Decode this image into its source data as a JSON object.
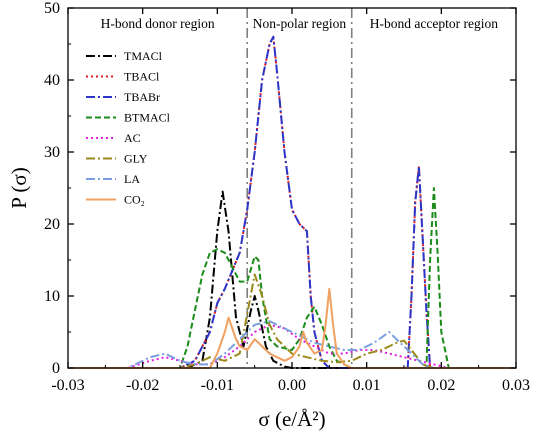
{
  "chart_data": {
    "type": "line",
    "xlabel": "σ (e/Å²)",
    "ylabel": "P (σ)",
    "xlim": [
      -0.03,
      0.03
    ],
    "ylim": [
      0,
      50
    ],
    "xticks": [
      "-0.03",
      "-0.02",
      "-0.01",
      "0.00",
      "0.01",
      "0.02",
      "0.03"
    ],
    "yticks": [
      "0",
      "10",
      "20",
      "30",
      "40",
      "50"
    ],
    "grid": false,
    "legend_position": "top-left",
    "region_dividers": [
      -0.006,
      0.008
    ],
    "regions": [
      {
        "label": "H-bond donor region",
        "x": -0.018
      },
      {
        "label": "Non-polar region",
        "x": 0.001
      },
      {
        "label": "H-bond acceptor region",
        "x": 0.019
      }
    ],
    "series": [
      {
        "name": "TMACl",
        "color": "#000000",
        "dash": "dashdot",
        "points": [
          [
            -0.03,
            0
          ],
          [
            -0.014,
            0
          ],
          [
            -0.012,
            1
          ],
          [
            -0.011,
            7
          ],
          [
            -0.01,
            19
          ],
          [
            -0.0093,
            24.5
          ],
          [
            -0.0085,
            19
          ],
          [
            -0.0075,
            7
          ],
          [
            -0.0065,
            3
          ],
          [
            -0.0055,
            8
          ],
          [
            -0.005,
            10
          ],
          [
            -0.0045,
            8
          ],
          [
            -0.0035,
            3
          ],
          [
            -0.0025,
            1
          ],
          [
            -0.001,
            0.2
          ],
          [
            0.0,
            0
          ],
          [
            0.03,
            0
          ]
        ]
      },
      {
        "name": "TBACl",
        "color": "#e41a1c",
        "dash": "dot",
        "points": [
          [
            -0.03,
            0
          ],
          [
            -0.015,
            0
          ],
          [
            -0.013,
            1
          ],
          [
            -0.011,
            5
          ],
          [
            -0.01,
            9
          ],
          [
            -0.009,
            11
          ],
          [
            -0.007,
            16
          ],
          [
            -0.006,
            22
          ],
          [
            -0.005,
            30
          ],
          [
            -0.004,
            40
          ],
          [
            -0.003,
            45
          ],
          [
            -0.0025,
            46
          ],
          [
            -0.002,
            41
          ],
          [
            -0.001,
            30
          ],
          [
            0.0,
            22
          ],
          [
            0.001,
            20
          ],
          [
            0.002,
            19
          ],
          [
            0.0025,
            10
          ],
          [
            0.003,
            5
          ],
          [
            0.004,
            1
          ],
          [
            0.005,
            0
          ],
          [
            0.0155,
            0
          ],
          [
            0.016,
            10
          ],
          [
            0.0165,
            23
          ],
          [
            0.017,
            28
          ],
          [
            0.0175,
            18
          ],
          [
            0.018,
            8
          ],
          [
            0.0185,
            0
          ],
          [
            0.03,
            0
          ]
        ]
      },
      {
        "name": "TBABr",
        "color": "#2b35c8",
        "dash": "dashdot",
        "points": [
          [
            -0.03,
            0
          ],
          [
            -0.015,
            0
          ],
          [
            -0.013,
            1
          ],
          [
            -0.011,
            5
          ],
          [
            -0.01,
            9
          ],
          [
            -0.009,
            11
          ],
          [
            -0.007,
            16
          ],
          [
            -0.006,
            22
          ],
          [
            -0.005,
            30
          ],
          [
            -0.004,
            40
          ],
          [
            -0.003,
            45
          ],
          [
            -0.0025,
            46
          ],
          [
            -0.002,
            41
          ],
          [
            -0.001,
            30
          ],
          [
            0.0,
            22
          ],
          [
            0.001,
            20
          ],
          [
            0.002,
            19
          ],
          [
            0.0025,
            10
          ],
          [
            0.003,
            5
          ],
          [
            0.004,
            1
          ],
          [
            0.005,
            0
          ],
          [
            0.0155,
            0
          ],
          [
            0.016,
            10
          ],
          [
            0.0165,
            23
          ],
          [
            0.017,
            28
          ],
          [
            0.0175,
            18
          ],
          [
            0.018,
            8
          ],
          [
            0.0185,
            0
          ],
          [
            0.03,
            0
          ]
        ]
      },
      {
        "name": "BTMACl",
        "color": "#1a8c1a",
        "dash": "dash",
        "points": [
          [
            -0.03,
            0
          ],
          [
            -0.015,
            0
          ],
          [
            -0.014,
            3
          ],
          [
            -0.013,
            8
          ],
          [
            -0.012,
            13
          ],
          [
            -0.011,
            16
          ],
          [
            -0.01,
            16.5
          ],
          [
            -0.009,
            16
          ],
          [
            -0.008,
            14
          ],
          [
            -0.007,
            12
          ],
          [
            -0.006,
            12
          ],
          [
            -0.005,
            15.5
          ],
          [
            -0.0045,
            15
          ],
          [
            -0.004,
            10
          ],
          [
            -0.003,
            4
          ],
          [
            -0.002,
            3
          ],
          [
            0.0,
            2.5
          ],
          [
            0.001,
            4
          ],
          [
            0.002,
            7
          ],
          [
            0.003,
            8.5
          ],
          [
            0.004,
            6
          ],
          [
            0.005,
            3
          ],
          [
            0.006,
            1
          ],
          [
            0.008,
            0
          ],
          [
            0.018,
            0
          ],
          [
            0.0185,
            15
          ],
          [
            0.019,
            25
          ],
          [
            0.0195,
            16
          ],
          [
            0.02,
            5
          ],
          [
            0.021,
            0
          ],
          [
            0.03,
            0
          ]
        ]
      },
      {
        "name": "AC",
        "color": "#e020e0",
        "dash": "dot",
        "points": [
          [
            -0.03,
            0
          ],
          [
            -0.022,
            0
          ],
          [
            -0.019,
            1
          ],
          [
            -0.017,
            1.5
          ],
          [
            -0.015,
            1
          ],
          [
            -0.013,
            0.5
          ],
          [
            -0.011,
            0.5
          ],
          [
            -0.009,
            1.5
          ],
          [
            -0.007,
            3
          ],
          [
            -0.005,
            5
          ],
          [
            -0.003,
            6
          ],
          [
            -0.001,
            5.5
          ],
          [
            0.001,
            4
          ],
          [
            0.003,
            3
          ],
          [
            0.005,
            2
          ],
          [
            0.007,
            2
          ],
          [
            0.009,
            2.5
          ],
          [
            0.011,
            2.5
          ],
          [
            0.013,
            2
          ],
          [
            0.015,
            1.5
          ],
          [
            0.017,
            1
          ],
          [
            0.019,
            0.5
          ],
          [
            0.021,
            0
          ],
          [
            0.03,
            0
          ]
        ]
      },
      {
        "name": "GLY",
        "color": "#9a8a1a",
        "dash": "dashdot",
        "points": [
          [
            -0.03,
            0
          ],
          [
            -0.015,
            0
          ],
          [
            -0.013,
            0.5
          ],
          [
            -0.011,
            1.5
          ],
          [
            -0.009,
            1
          ],
          [
            -0.007,
            2
          ],
          [
            -0.005,
            13
          ],
          [
            -0.004,
            10
          ],
          [
            -0.003,
            6
          ],
          [
            -0.002,
            4
          ],
          [
            -0.001,
            3
          ],
          [
            0.0,
            2
          ],
          [
            0.002,
            1.5
          ],
          [
            0.004,
            1
          ],
          [
            0.006,
            0.8
          ],
          [
            0.008,
            1
          ],
          [
            0.01,
            2
          ],
          [
            0.012,
            2.5
          ],
          [
            0.014,
            3.5
          ],
          [
            0.015,
            3.8
          ],
          [
            0.016,
            2.5
          ],
          [
            0.0175,
            0.5
          ],
          [
            0.019,
            0
          ],
          [
            0.03,
            0
          ]
        ]
      },
      {
        "name": "LA",
        "color": "#7aa0e0",
        "dash": "dashdot",
        "points": [
          [
            -0.03,
            0
          ],
          [
            -0.022,
            0
          ],
          [
            -0.019,
            1.5
          ],
          [
            -0.017,
            2
          ],
          [
            -0.015,
            1
          ],
          [
            -0.013,
            0.5
          ],
          [
            -0.011,
            0.5
          ],
          [
            -0.009,
            2
          ],
          [
            -0.007,
            4
          ],
          [
            -0.005,
            6
          ],
          [
            -0.003,
            6.5
          ],
          [
            -0.001,
            5.5
          ],
          [
            0.001,
            4.5
          ],
          [
            0.003,
            3.5
          ],
          [
            0.005,
            3
          ],
          [
            0.007,
            2.5
          ],
          [
            0.009,
            2.5
          ],
          [
            0.011,
            3.5
          ],
          [
            0.013,
            5
          ],
          [
            0.014,
            4
          ],
          [
            0.016,
            2
          ],
          [
            0.0175,
            0.5
          ],
          [
            0.019,
            0
          ],
          [
            0.03,
            0
          ]
        ]
      },
      {
        "name": "CO₂",
        "color": "#f0a060",
        "dash": "solid",
        "points": [
          [
            -0.03,
            0
          ],
          [
            -0.011,
            0
          ],
          [
            -0.01,
            2
          ],
          [
            -0.009,
            5
          ],
          [
            -0.0085,
            7
          ],
          [
            -0.008,
            5.5
          ],
          [
            -0.0075,
            4
          ],
          [
            -0.007,
            3
          ],
          [
            -0.006,
            2.5
          ],
          [
            -0.005,
            4
          ],
          [
            -0.004,
            3
          ],
          [
            -0.003,
            2
          ],
          [
            -0.002,
            1.5
          ],
          [
            -0.001,
            1
          ],
          [
            0.0,
            1.5
          ],
          [
            0.001,
            3
          ],
          [
            0.0015,
            5
          ],
          [
            0.002,
            3.5
          ],
          [
            0.003,
            2
          ],
          [
            0.004,
            2.5
          ],
          [
            0.0045,
            6
          ],
          [
            0.005,
            11
          ],
          [
            0.0055,
            6
          ],
          [
            0.006,
            2
          ],
          [
            0.007,
            0.5
          ],
          [
            0.008,
            0
          ],
          [
            0.03,
            0
          ]
        ]
      }
    ]
  }
}
